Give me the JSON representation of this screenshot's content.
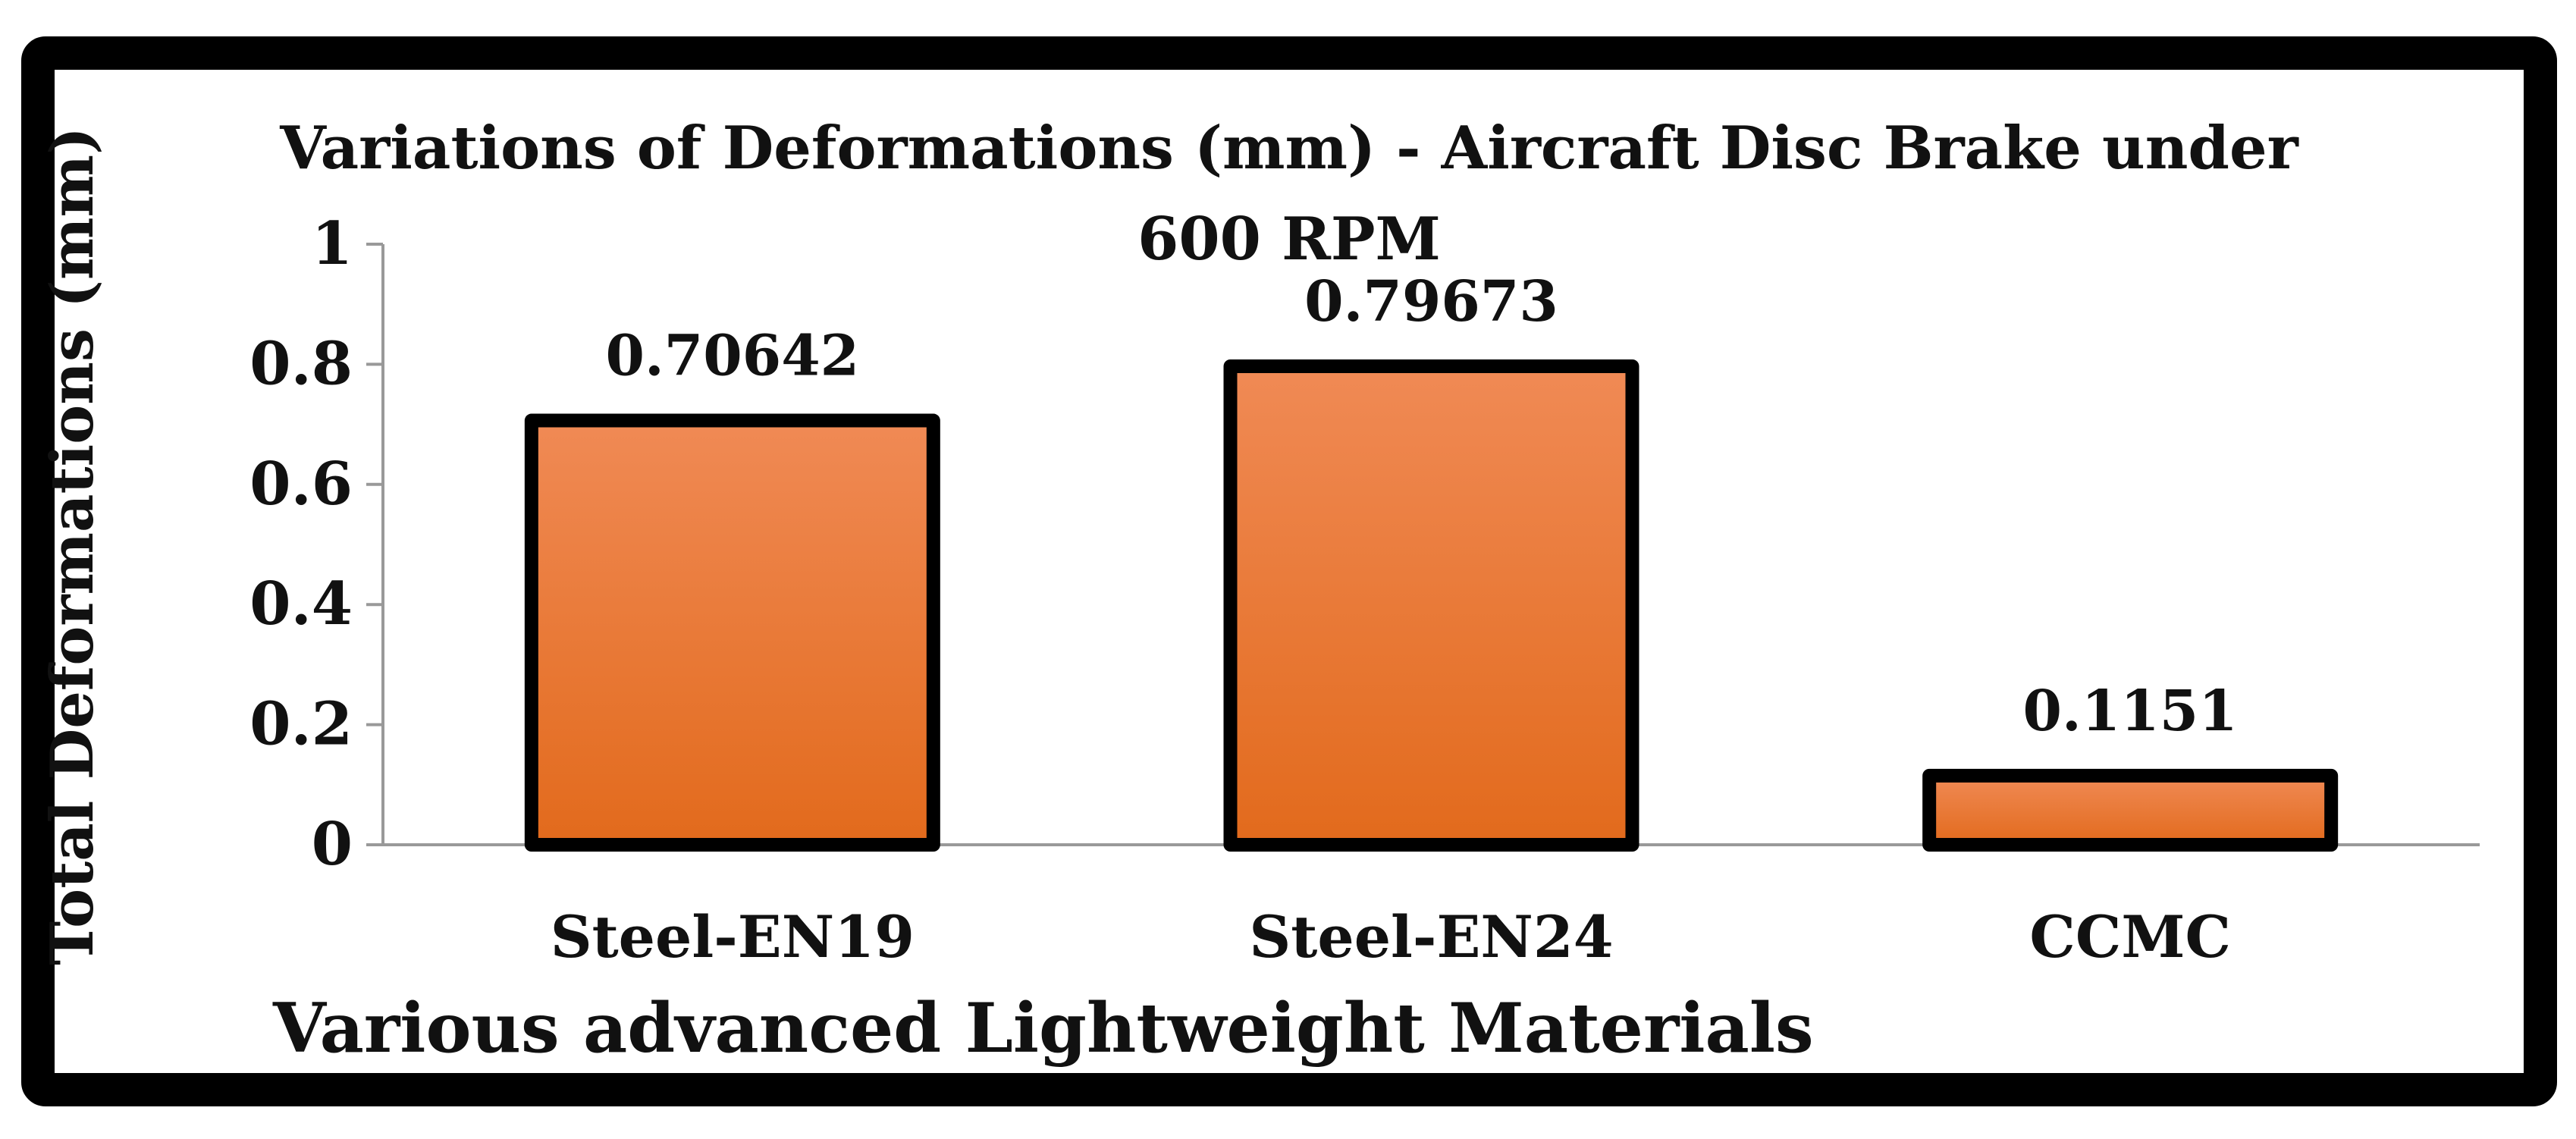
{
  "chart_data": {
    "type": "bar",
    "title_line1": "Variations of Deformations (mm) - Aircraft Disc Brake under",
    "title_line2": "600 RPM",
    "xlabel": "Various advanced Lightweight Materials",
    "ylabel": "Total Deformations (mm)",
    "categories": [
      "Steel-EN19",
      "Steel-EN24",
      "CCMC"
    ],
    "values": [
      0.70642,
      0.79673,
      0.1151
    ],
    "value_labels": [
      "0.70642",
      "0.79673",
      "0.1151"
    ],
    "ylim": [
      0,
      1
    ],
    "yticks": [
      0,
      0.2,
      0.4,
      0.6,
      0.8,
      1
    ],
    "ytick_labels": [
      "0",
      "0.2",
      "0.4",
      "0.6",
      "0.8",
      "1"
    ],
    "grid": false,
    "legend": "none"
  },
  "colors": {
    "bar_top": "#f08a55",
    "bar_bottom": "#e26a1c",
    "bar_outline": "#000000",
    "frame": "#000000",
    "axis": "#999999",
    "background": "#ffffff"
  }
}
